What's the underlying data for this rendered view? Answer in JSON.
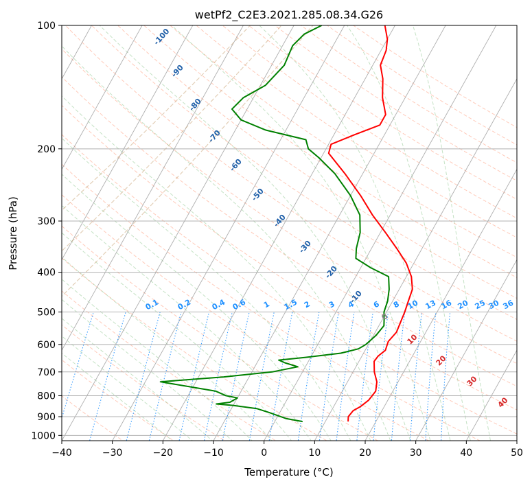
{
  "chart_data": {
    "type": "line",
    "title": "wetPf2_C2E3.2021.285.08.34.G26",
    "xlabel": "Temperature (°C)",
    "ylabel": "Pressure (hPa)",
    "xlim": [
      -40,
      50
    ],
    "ylim": [
      1030,
      100
    ],
    "y_scale": "log",
    "skew": "skew-T log-P",
    "xticks": [
      -40,
      -30,
      -20,
      -10,
      0,
      10,
      20,
      30,
      40,
      50
    ],
    "yticks": [
      100,
      200,
      300,
      400,
      500,
      600,
      700,
      800,
      900,
      1000
    ],
    "grid": true,
    "series": [
      {
        "name": "Temperature",
        "color": "#ff0000",
        "points": [
          {
            "p": 925,
            "t": 14.5
          },
          {
            "p": 900,
            "t": 14.0
          },
          {
            "p": 870,
            "t": 14.3
          },
          {
            "p": 850,
            "t": 15.3
          },
          {
            "p": 820,
            "t": 16.2
          },
          {
            "p": 780,
            "t": 16.6
          },
          {
            "p": 740,
            "t": 15.8
          },
          {
            "p": 700,
            "t": 14.2
          },
          {
            "p": 660,
            "t": 13.0
          },
          {
            "p": 640,
            "t": 13.2
          },
          {
            "p": 620,
            "t": 14.0
          },
          {
            "p": 590,
            "t": 13.6
          },
          {
            "p": 560,
            "t": 14.2
          },
          {
            "p": 530,
            "t": 13.9
          },
          {
            "p": 500,
            "t": 13.6
          },
          {
            "p": 470,
            "t": 13.1
          },
          {
            "p": 440,
            "t": 12.6
          },
          {
            "p": 410,
            "t": 11.0
          },
          {
            "p": 380,
            "t": 8.5
          },
          {
            "p": 350,
            "t": 5.0
          },
          {
            "p": 320,
            "t": 1.0
          },
          {
            "p": 290,
            "t": -3.5
          },
          {
            "p": 260,
            "t": -8.0
          },
          {
            "p": 230,
            "t": -13.5
          },
          {
            "p": 205,
            "t": -19.0
          },
          {
            "p": 195,
            "t": -19.5
          },
          {
            "p": 185,
            "t": -16.0
          },
          {
            "p": 175,
            "t": -12.0
          },
          {
            "p": 165,
            "t": -12.0
          },
          {
            "p": 150,
            "t": -14.5
          },
          {
            "p": 135,
            "t": -16.5
          },
          {
            "p": 125,
            "t": -18.5
          },
          {
            "p": 115,
            "t": -19.0
          },
          {
            "p": 108,
            "t": -20.0
          },
          {
            "p": 100,
            "t": -22.0
          }
        ]
      },
      {
        "name": "Dewpoint",
        "color": "#008000",
        "points": [
          {
            "p": 925,
            "t": 5.5
          },
          {
            "p": 910,
            "t": 2.0
          },
          {
            "p": 895,
            "t": 0.0
          },
          {
            "p": 880,
            "t": -2.0
          },
          {
            "p": 860,
            "t": -5.0
          },
          {
            "p": 845,
            "t": -10.0
          },
          {
            "p": 838,
            "t": -13.5
          },
          {
            "p": 830,
            "t": -11.0
          },
          {
            "p": 810,
            "t": -10.0
          },
          {
            "p": 800,
            "t": -12.5
          },
          {
            "p": 780,
            "t": -15.0
          },
          {
            "p": 740,
            "t": -27.0
          },
          {
            "p": 720,
            "t": -15.0
          },
          {
            "p": 700,
            "t": -6.0
          },
          {
            "p": 680,
            "t": -1.5
          },
          {
            "p": 665,
            "t": -4.5
          },
          {
            "p": 655,
            "t": -6.0
          },
          {
            "p": 645,
            "t": -1.0
          },
          {
            "p": 630,
            "t": 5.5
          },
          {
            "p": 615,
            "t": 8.5
          },
          {
            "p": 600,
            "t": 9.5
          },
          {
            "p": 570,
            "t": 10.5
          },
          {
            "p": 540,
            "t": 11.0
          },
          {
            "p": 520,
            "t": 10.3
          },
          {
            "p": 500,
            "t": 9.5
          },
          {
            "p": 470,
            "t": 9.0
          },
          {
            "p": 440,
            "t": 8.0
          },
          {
            "p": 410,
            "t": 6.5
          },
          {
            "p": 390,
            "t": 2.0
          },
          {
            "p": 370,
            "t": -2.0
          },
          {
            "p": 350,
            "t": -3.0
          },
          {
            "p": 320,
            "t": -4.0
          },
          {
            "p": 290,
            "t": -6.0
          },
          {
            "p": 260,
            "t": -10.0
          },
          {
            "p": 230,
            "t": -15.5
          },
          {
            "p": 210,
            "t": -20.5
          },
          {
            "p": 200,
            "t": -23.5
          },
          {
            "p": 190,
            "t": -25.0
          },
          {
            "p": 180,
            "t": -34.0
          },
          {
            "p": 170,
            "t": -40.0
          },
          {
            "p": 160,
            "t": -43.0
          },
          {
            "p": 150,
            "t": -42.0
          },
          {
            "p": 140,
            "t": -39.0
          },
          {
            "p": 125,
            "t": -37.5
          },
          {
            "p": 112,
            "t": -38.0
          },
          {
            "p": 105,
            "t": -37.0
          },
          {
            "p": 100,
            "t": -34.5
          }
        ]
      }
    ],
    "dry_adiabat_labels": [
      "-100",
      "-90",
      "-80",
      "-70",
      "-60",
      "-50",
      "-40",
      "-30",
      "-20",
      "-10"
    ],
    "mixing_ratio_labels": [
      "0.1",
      "0.2",
      "0.4",
      "0.6",
      "1",
      "1.5",
      "2",
      "3",
      "4",
      "6",
      "8",
      "10",
      "13",
      "16",
      "20",
      "25",
      "30",
      "36"
    ],
    "moist_adiabat_labels": [
      "0",
      "10",
      "20",
      "30",
      "40"
    ]
  },
  "colors": {
    "temperature": "#ff0000",
    "dewpoint": "#008000",
    "dry_adiabat_label": "#1f5fa8",
    "mixing_ratio": "#1e90ff",
    "moist_adiabat_label": "#d62728",
    "zero_label": "#808080"
  }
}
